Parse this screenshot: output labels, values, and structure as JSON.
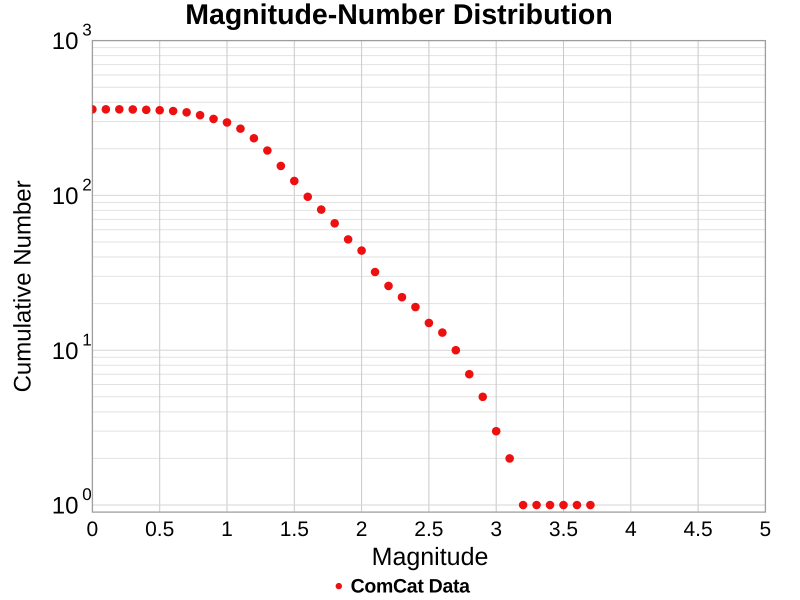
{
  "chart_data": {
    "type": "scatter",
    "title": "Magnitude-Number Distribution",
    "xlabel": "Magnitude",
    "ylabel": "Cumulative Number",
    "xlim": [
      0,
      5
    ],
    "ylim": [
      0.9,
      1000
    ],
    "yscale": "log",
    "grid": "on",
    "legend_position": "bottom-center",
    "series": [
      {
        "name": "ComCat Data",
        "marker": "circle",
        "color": "#ec1010",
        "x": [
          0.0,
          0.1,
          0.2,
          0.3,
          0.4,
          0.5,
          0.6,
          0.7,
          0.8,
          0.9,
          1.0,
          1.1,
          1.2,
          1.3,
          1.4,
          1.5,
          1.6,
          1.7,
          1.8,
          1.9,
          2.0,
          2.1,
          2.2,
          2.3,
          2.4,
          2.5,
          2.6,
          2.7,
          2.8,
          2.9,
          3.0,
          3.1,
          3.2,
          3.3,
          3.4,
          3.5,
          3.6,
          3.7
        ],
        "y": [
          360,
          360,
          360,
          359,
          357,
          355,
          351,
          344,
          330,
          312,
          296,
          270,
          234,
          195,
          155,
          124,
          98,
          81,
          66,
          52,
          44,
          32,
          26,
          22,
          19,
          15,
          13,
          10,
          7,
          5,
          3,
          2,
          1,
          1,
          1,
          1,
          1,
          1
        ]
      }
    ],
    "xticks": [
      {
        "value": 0.0,
        "label": "0"
      },
      {
        "value": 0.5,
        "label": "0.5"
      },
      {
        "value": 1.0,
        "label": "1"
      },
      {
        "value": 1.5,
        "label": "1.5"
      },
      {
        "value": 2.0,
        "label": "2"
      },
      {
        "value": 2.5,
        "label": "2.5"
      },
      {
        "value": 3.0,
        "label": "3"
      },
      {
        "value": 3.5,
        "label": "3.5"
      },
      {
        "value": 4.0,
        "label": "4"
      },
      {
        "value": 4.5,
        "label": "4.5"
      },
      {
        "value": 5.0,
        "label": "5"
      }
    ],
    "yticks": [
      {
        "value": 1,
        "base": "10",
        "exp": "0"
      },
      {
        "value": 10,
        "base": "10",
        "exp": "1"
      },
      {
        "value": 100,
        "base": "10",
        "exp": "2"
      },
      {
        "value": 1000,
        "base": "10",
        "exp": "3"
      }
    ],
    "colors": {
      "background": "#ffffff",
      "plot_background": "#ffffff",
      "plot_border": "#9e9e9e",
      "grid_vertical": "#c9c9c9",
      "grid_major_horizontal": "#d6d6d6",
      "grid_minor_horizontal": "#e2e2e2",
      "text": "#000000",
      "point": "#ec1010"
    },
    "legend": [
      {
        "label": "ComCat Data",
        "marker": "circle",
        "color": "#ec1010"
      }
    ]
  }
}
